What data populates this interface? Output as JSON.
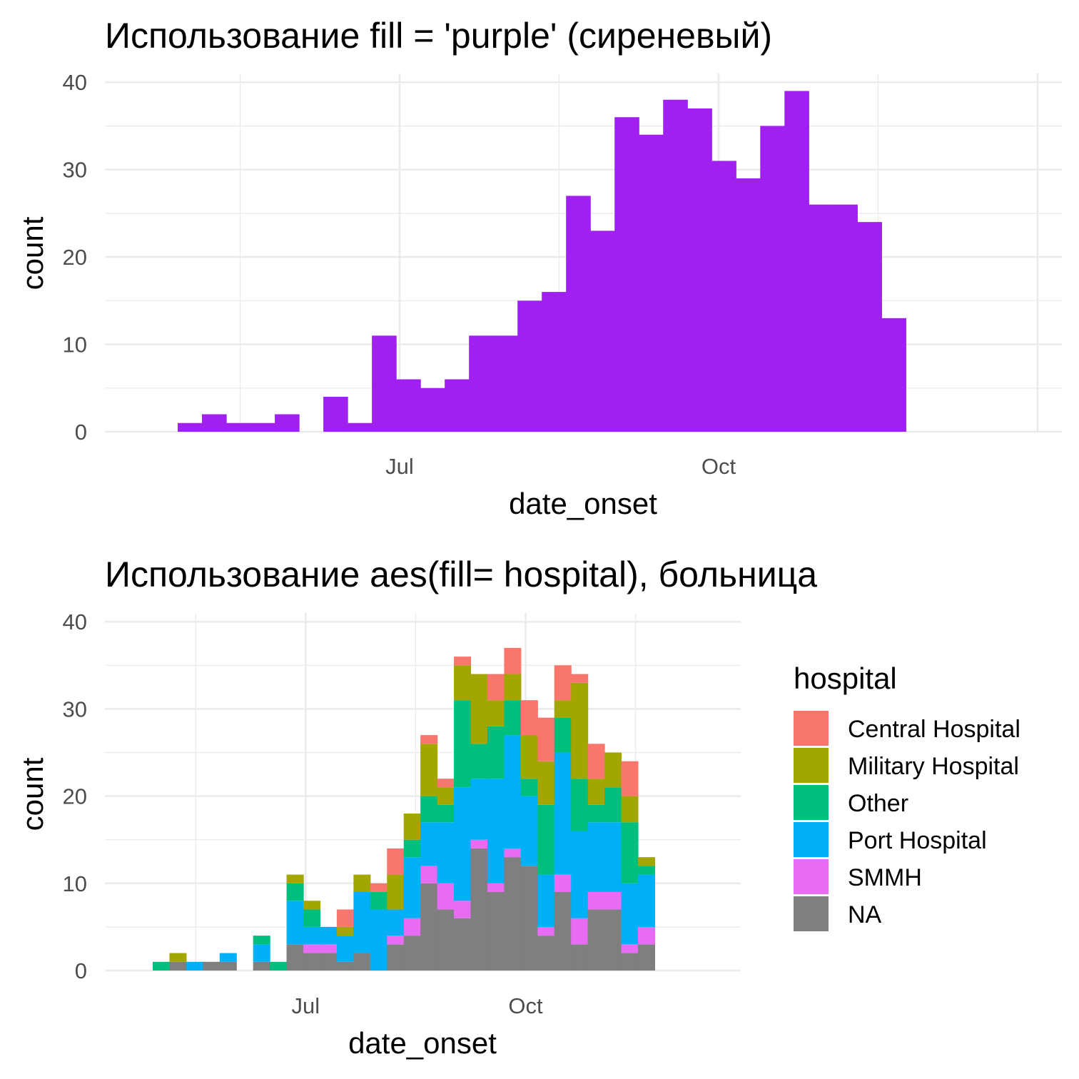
{
  "chart_data": [
    {
      "type": "bar",
      "subtype": "histogram",
      "title": "Использование fill = 'purple' (сиреневый)",
      "xlabel": "date_onset",
      "ylabel": "count",
      "x_ticks": [
        {
          "label": "Jul",
          "date": "2014-07-01"
        },
        {
          "label": "Oct",
          "date": "2014-10-01"
        }
      ],
      "xlim": [
        "2014-04-07",
        "2015-01-08"
      ],
      "ylim": [
        0,
        41
      ],
      "y_ticks": [
        0,
        10,
        20,
        30,
        40
      ],
      "grid": true,
      "fill_color": "#A020F0",
      "bin_start": "2014-04-28",
      "bin_width_days": 7,
      "values": [
        1,
        2,
        1,
        1,
        2,
        0,
        4,
        1,
        11,
        6,
        5,
        6,
        11,
        11,
        15,
        16,
        27,
        23,
        36,
        34,
        38,
        37,
        31,
        29,
        35,
        39,
        26,
        26,
        24,
        13
      ]
    },
    {
      "type": "bar",
      "subtype": "stacked histogram",
      "title": "Использование aes(fill= hospital), больница",
      "xlabel": "date_onset",
      "ylabel": "count",
      "x_ticks": [
        {
          "label": "Jul",
          "date": "2014-07-01"
        },
        {
          "label": "Oct",
          "date": "2014-10-01"
        }
      ],
      "xlim": [
        "2014-04-08",
        "2014-12-30"
      ],
      "ylim": [
        0,
        41
      ],
      "y_ticks": [
        0,
        10,
        20,
        30,
        40
      ],
      "grid": true,
      "bin_start": "2014-04-28",
      "bin_width_days": 7,
      "legend": {
        "title": "hospital",
        "position": "right"
      },
      "series": [
        {
          "name": "Central Hospital",
          "color": "#F8766D",
          "values": [
            0,
            0,
            0,
            0,
            0,
            0,
            0,
            0,
            0,
            0,
            0,
            2,
            0,
            1,
            3,
            0,
            1,
            1,
            1,
            0,
            3,
            3,
            4,
            5,
            4,
            1,
            4,
            0,
            4,
            0
          ]
        },
        {
          "name": "Military Hospital",
          "color": "#A3A500",
          "values": [
            0,
            1,
            0,
            0,
            0,
            0,
            0,
            0,
            1,
            1,
            0,
            1,
            2,
            0,
            4,
            3,
            6,
            2,
            4,
            8,
            3,
            3,
            5,
            5,
            2,
            11,
            3,
            4,
            3,
            1
          ]
        },
        {
          "name": "Other",
          "color": "#00BF7D",
          "values": [
            1,
            0,
            0,
            0,
            0,
            0,
            1,
            1,
            2,
            2,
            0,
            0,
            0,
            2,
            0,
            2,
            3,
            2,
            10,
            4,
            6,
            4,
            2,
            8,
            4,
            6,
            2,
            4,
            7,
            1
          ]
        },
        {
          "name": "Port Hospital",
          "color": "#00B0F6",
          "values": [
            0,
            0,
            1,
            0,
            1,
            0,
            2,
            0,
            5,
            2,
            2,
            3,
            7,
            7,
            3,
            7,
            5,
            7,
            13,
            7,
            12,
            13,
            8,
            6,
            14,
            10,
            8,
            8,
            7,
            6
          ]
        },
        {
          "name": "SMMH",
          "color": "#E76BF3",
          "values": [
            0,
            0,
            0,
            0,
            0,
            0,
            0,
            0,
            0,
            1,
            1,
            0,
            0,
            0,
            1,
            2,
            2,
            3,
            2,
            1,
            1,
            1,
            0,
            1,
            2,
            3,
            2,
            2,
            1,
            2
          ]
        },
        {
          "name": "NA",
          "color": "#7F7F7F",
          "values": [
            0,
            1,
            0,
            1,
            1,
            0,
            1,
            0,
            3,
            2,
            2,
            1,
            2,
            0,
            3,
            4,
            10,
            7,
            6,
            14,
            9,
            13,
            12,
            4,
            9,
            3,
            7,
            7,
            2,
            3
          ]
        }
      ]
    }
  ]
}
